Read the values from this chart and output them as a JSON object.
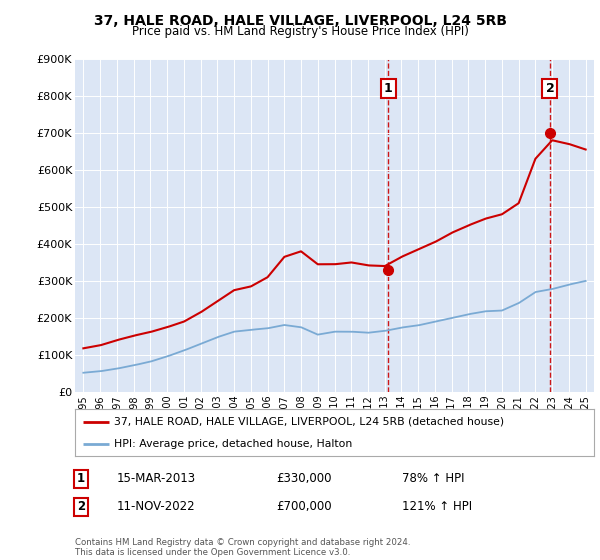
{
  "title": "37, HALE ROAD, HALE VILLAGE, LIVERPOOL, L24 5RB",
  "subtitle": "Price paid vs. HM Land Registry's House Price Index (HPI)",
  "legend_line1": "37, HALE ROAD, HALE VILLAGE, LIVERPOOL, L24 5RB (detached house)",
  "legend_line2": "HPI: Average price, detached house, Halton",
  "annotation1_label": "1",
  "annotation1_date": "15-MAR-2013",
  "annotation1_price": "£330,000",
  "annotation1_hpi": "78% ↑ HPI",
  "annotation1_year": 2013.2,
  "annotation1_value": 330000,
  "annotation2_label": "2",
  "annotation2_date": "11-NOV-2022",
  "annotation2_price": "£700,000",
  "annotation2_hpi": "121% ↑ HPI",
  "annotation2_year": 2022.87,
  "annotation2_value": 700000,
  "footer": "Contains HM Land Registry data © Crown copyright and database right 2024.\nThis data is licensed under the Open Government Licence v3.0.",
  "ylim": [
    0,
    900000
  ],
  "yticks": [
    0,
    100000,
    200000,
    300000,
    400000,
    500000,
    600000,
    700000,
    800000,
    900000
  ],
  "ytick_labels": [
    "£0",
    "£100K",
    "£200K",
    "£300K",
    "£400K",
    "£500K",
    "£600K",
    "£700K",
    "£800K",
    "£900K"
  ],
  "xlim": [
    1994.5,
    2025.5
  ],
  "xticks": [
    1995,
    1996,
    1997,
    1998,
    1999,
    2000,
    2001,
    2002,
    2003,
    2004,
    2005,
    2006,
    2007,
    2008,
    2009,
    2010,
    2011,
    2012,
    2013,
    2014,
    2015,
    2016,
    2017,
    2018,
    2019,
    2020,
    2021,
    2022,
    2023,
    2024,
    2025
  ],
  "plot_bg_color": "#dce6f5",
  "red_color": "#cc0000",
  "blue_color": "#7aaad4",
  "dashed_color": "#cc0000",
  "hpi_line": {
    "years": [
      1995,
      1996,
      1997,
      1998,
      1999,
      2000,
      2001,
      2002,
      2003,
      2004,
      2005,
      2006,
      2007,
      2008,
      2009,
      2010,
      2011,
      2012,
      2013,
      2014,
      2015,
      2016,
      2017,
      2018,
      2019,
      2020,
      2021,
      2022,
      2023,
      2024,
      2025
    ],
    "values": [
      52000,
      56000,
      63000,
      72000,
      82000,
      96000,
      112000,
      130000,
      148000,
      163000,
      168000,
      172000,
      181000,
      175000,
      155000,
      163000,
      163000,
      160000,
      165000,
      174000,
      180000,
      190000,
      200000,
      210000,
      218000,
      220000,
      240000,
      270000,
      278000,
      290000,
      300000
    ]
  },
  "price_line": {
    "years": [
      1995,
      1996,
      1997,
      1998,
      1999,
      2000,
      2001,
      2002,
      2003,
      2004,
      2005,
      2006,
      2007,
      2008,
      2009,
      2010,
      2011,
      2012,
      2013,
      2014,
      2015,
      2016,
      2017,
      2018,
      2019,
      2020,
      2021,
      2022,
      2023,
      2024,
      2025
    ],
    "values": [
      118000,
      126000,
      140000,
      152000,
      162000,
      175000,
      190000,
      215000,
      245000,
      275000,
      285000,
      310000,
      365000,
      380000,
      345000,
      345000,
      350000,
      342000,
      340000,
      365000,
      385000,
      405000,
      430000,
      450000,
      468000,
      480000,
      510000,
      630000,
      680000,
      670000,
      655000
    ]
  }
}
